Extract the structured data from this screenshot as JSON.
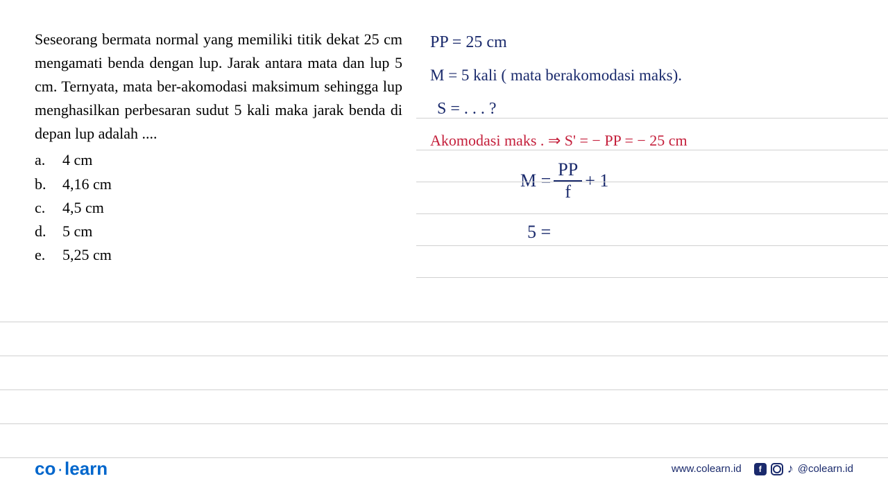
{
  "question": {
    "text": "Seseorang bermata normal yang memiliki titik dekat 25 cm mengamati benda dengan lup. Jarak antara mata dan lup 5 cm. Ternyata, mata ber-akomodasi maksimum sehingga lup menghasilkan perbesaran sudut 5 kali maka jarak benda di depan lup adalah ....",
    "options": [
      {
        "label": "a.",
        "value": "4 cm"
      },
      {
        "label": "b.",
        "value": "4,16 cm"
      },
      {
        "label": "c.",
        "value": "4,5 cm"
      },
      {
        "label": "d.",
        "value": "5 cm"
      },
      {
        "label": "e.",
        "value": "5,25 cm"
      }
    ]
  },
  "handwriting": {
    "line1": "PP = 25 cm",
    "line2": "M = 5 kali  ( mata berakomodasi maks).",
    "line3": "S = . . .  ?",
    "line4": "Akomodasi maks . ⇒  S' = − PP = − 25 cm",
    "formula_lhs": "M = ",
    "formula_num": "PP",
    "formula_den": "f",
    "formula_rhs": " + 1",
    "line6": "5 ="
  },
  "styling": {
    "text_color": "#000000",
    "handwriting_blue": "#1a2a6c",
    "handwriting_red": "#c41e3a",
    "rule_color": "#d0d0d0",
    "logo_color": "#0066cc",
    "question_fontsize": 22,
    "handwriting_fontsize": 24,
    "rule_positions_y": [
      130,
      176,
      222,
      268,
      314,
      360,
      424,
      473,
      522,
      571,
      620
    ]
  },
  "footer": {
    "logo_part1": "co",
    "logo_part2": "learn",
    "url": "www.colearn.id",
    "handle": "@colearn.id"
  }
}
